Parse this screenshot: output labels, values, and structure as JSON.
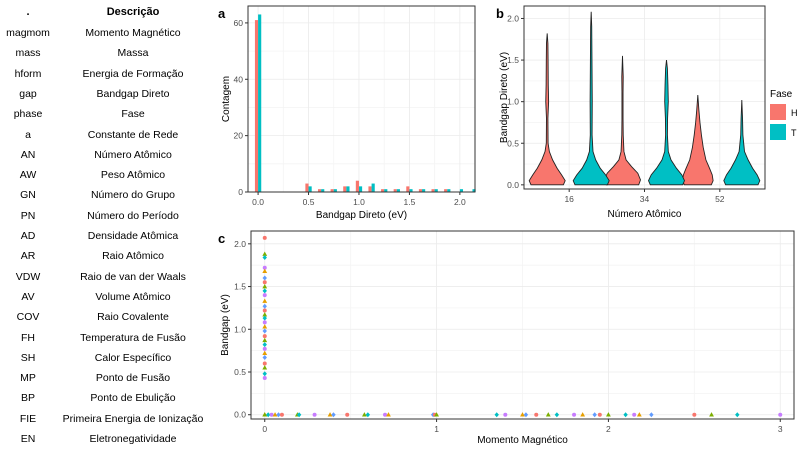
{
  "table": {
    "header_abbr": ".",
    "header_desc": "Descrição",
    "rows": [
      {
        "abbr": "magmom",
        "desc": "Momento Magnético"
      },
      {
        "abbr": "mass",
        "desc": "Massa"
      },
      {
        "abbr": "hform",
        "desc": "Energia de Formação"
      },
      {
        "abbr": "gap",
        "desc": "Bandgap Direto"
      },
      {
        "abbr": "phase",
        "desc": "Fase"
      },
      {
        "abbr": "a",
        "desc": "Constante de Rede"
      },
      {
        "abbr": "AN",
        "desc": "Número Atômico"
      },
      {
        "abbr": "AW",
        "desc": "Peso Atômico"
      },
      {
        "abbr": "GN",
        "desc": "Número do Grupo"
      },
      {
        "abbr": "PN",
        "desc": "Número do Período"
      },
      {
        "abbr": "AD",
        "desc": "Densidade Atômica"
      },
      {
        "abbr": "AR",
        "desc": "Raio Atômico"
      },
      {
        "abbr": "VDW",
        "desc": "Raio de van der Waals"
      },
      {
        "abbr": "AV",
        "desc": "Volume Atômico"
      },
      {
        "abbr": "COV",
        "desc": "Raio Covalente"
      },
      {
        "abbr": "FH",
        "desc": "Temperatura de Fusão"
      },
      {
        "abbr": "SH",
        "desc": "Calor Específico"
      },
      {
        "abbr": "MP",
        "desc": "Ponto de Fusão"
      },
      {
        "abbr": "BP",
        "desc": "Ponto de Ebulição"
      },
      {
        "abbr": "FIE",
        "desc": "Primeira Energia de Ionização"
      },
      {
        "abbr": "EN",
        "desc": "Eletronegatividade"
      }
    ]
  },
  "colors": {
    "H": "#F8766D",
    "T": "#00BFC4",
    "scatter": [
      "#F8766D",
      "#7CAE00",
      "#00BFC4",
      "#C77CFF",
      "#E69F00",
      "#619CFF"
    ]
  },
  "chart_data": [
    {
      "panel": "a",
      "type": "bar",
      "xlabel": "Bandgap Direto (eV)",
      "ylabel": "Contagem",
      "xlim": [
        -0.1,
        2.15
      ],
      "ylim": [
        0,
        66
      ],
      "xticks": [
        0.0,
        0.5,
        1.0,
        1.5,
        2.0
      ],
      "xtick_labels": [
        "0.0",
        "0.5",
        "1.0",
        "1.5",
        "2.0"
      ],
      "yticks": [
        0,
        20,
        40,
        60
      ],
      "bin_width": 0.0625,
      "series": [
        {
          "name": "H",
          "bins": [
            0.0,
            0.5,
            0.625,
            0.75,
            0.875,
            1.0,
            1.125,
            1.25,
            1.375,
            1.5,
            1.625,
            1.75,
            1.875,
            2.0,
            2.125
          ],
          "values": [
            61,
            3,
            1,
            1,
            2,
            4,
            2,
            1,
            1,
            2,
            1,
            1,
            1,
            0,
            0
          ]
        },
        {
          "name": "T",
          "bins": [
            0.0,
            0.5,
            0.625,
            0.75,
            0.875,
            1.0,
            1.125,
            1.25,
            1.375,
            1.5,
            1.625,
            1.75,
            1.875,
            2.0,
            2.125
          ],
          "values": [
            63,
            2,
            1,
            1,
            2,
            2,
            3,
            1,
            1,
            1,
            1,
            1,
            1,
            1,
            1
          ]
        }
      ]
    },
    {
      "panel": "b",
      "type": "violin",
      "xlabel": "Número Atômico",
      "ylabel": "Bandgap Direto (eV)",
      "ylim": [
        -0.05,
        2.15
      ],
      "yticks": [
        0.0,
        0.5,
        1.0,
        1.5,
        2.0
      ],
      "yticks_labels": [
        "0.0",
        "0.5",
        "1.0",
        "1.5",
        "2.0"
      ],
      "categories": [
        "16",
        "34",
        "52"
      ],
      "legend_title": "Fase",
      "legend_position": "right",
      "series": [
        {
          "name": "H",
          "violins": [
            {
              "category": "16",
              "max": 1.82,
              "profile": [
                [
                  0.0,
                  0.9
                ],
                [
                  0.05,
                  1.0
                ],
                [
                  0.12,
                  0.8
                ],
                [
                  0.2,
                  0.55
                ],
                [
                  0.3,
                  0.3
                ],
                [
                  0.4,
                  0.12
                ],
                [
                  0.5,
                  0.05
                ],
                [
                  0.8,
                  0.04
                ],
                [
                  1.0,
                  0.08
                ],
                [
                  1.2,
                  0.06
                ],
                [
                  1.5,
                  0.05
                ],
                [
                  1.7,
                  0.04
                ],
                [
                  1.82,
                  0.0
                ]
              ]
            },
            {
              "category": "34",
              "max": 1.55,
              "profile": [
                [
                  0.0,
                  0.9
                ],
                [
                  0.06,
                  1.0
                ],
                [
                  0.14,
                  0.85
                ],
                [
                  0.22,
                  0.5
                ],
                [
                  0.3,
                  0.2
                ],
                [
                  0.4,
                  0.08
                ],
                [
                  0.6,
                  0.04
                ],
                [
                  0.8,
                  0.03
                ],
                [
                  1.1,
                  0.03
                ],
                [
                  1.3,
                  0.04
                ],
                [
                  1.55,
                  0.0
                ]
              ]
            },
            {
              "category": "52",
              "max": 1.08,
              "profile": [
                [
                  0.0,
                  0.75
                ],
                [
                  0.05,
                  0.85
                ],
                [
                  0.12,
                  0.8
                ],
                [
                  0.2,
                  0.65
                ],
                [
                  0.3,
                  0.45
                ],
                [
                  0.45,
                  0.3
                ],
                [
                  0.6,
                  0.2
                ],
                [
                  0.75,
                  0.12
                ],
                [
                  0.9,
                  0.06
                ],
                [
                  1.08,
                  0.0
                ]
              ]
            }
          ]
        },
        {
          "name": "T",
          "violins": [
            {
              "category": "16",
              "max": 2.08,
              "profile": [
                [
                  0.0,
                  0.9
                ],
                [
                  0.05,
                  1.0
                ],
                [
                  0.12,
                  0.8
                ],
                [
                  0.2,
                  0.5
                ],
                [
                  0.3,
                  0.25
                ],
                [
                  0.4,
                  0.1
                ],
                [
                  0.6,
                  0.05
                ],
                [
                  1.0,
                  0.06
                ],
                [
                  1.3,
                  0.05
                ],
                [
                  1.6,
                  0.04
                ],
                [
                  1.9,
                  0.03
                ],
                [
                  2.08,
                  0.0
                ]
              ]
            },
            {
              "category": "34",
              "max": 1.5,
              "profile": [
                [
                  0.0,
                  0.9
                ],
                [
                  0.05,
                  1.0
                ],
                [
                  0.12,
                  0.85
                ],
                [
                  0.2,
                  0.55
                ],
                [
                  0.3,
                  0.25
                ],
                [
                  0.4,
                  0.1
                ],
                [
                  0.6,
                  0.05
                ],
                [
                  0.8,
                  0.06
                ],
                [
                  1.0,
                  0.1
                ],
                [
                  1.2,
                  0.08
                ],
                [
                  1.4,
                  0.05
                ],
                [
                  1.5,
                  0.0
                ]
              ]
            },
            {
              "category": "52",
              "max": 1.02,
              "profile": [
                [
                  0.0,
                  0.9
                ],
                [
                  0.05,
                  1.0
                ],
                [
                  0.12,
                  0.85
                ],
                [
                  0.2,
                  0.6
                ],
                [
                  0.3,
                  0.35
                ],
                [
                  0.4,
                  0.15
                ],
                [
                  0.6,
                  0.06
                ],
                [
                  0.8,
                  0.04
                ],
                [
                  1.02,
                  0.0
                ]
              ]
            }
          ]
        }
      ]
    },
    {
      "panel": "c",
      "type": "scatter",
      "xlabel": "Momento Magnético",
      "ylabel": "Bandgap (eV)",
      "xlim": [
        -0.08,
        3.08
      ],
      "ylim": [
        -0.05,
        2.15
      ],
      "xticks": [
        0,
        1,
        2,
        3
      ],
      "xtick_labels": [
        "0",
        "1",
        "2",
        "3"
      ],
      "yticks": [
        0.0,
        0.5,
        1.0,
        1.5,
        2.0
      ],
      "ytick_labels": [
        "0.0",
        "0.5",
        "1.0",
        "1.5",
        "2.0"
      ],
      "points_at_zero_moment": [
        2.07,
        1.88,
        1.84,
        1.72,
        1.68,
        1.6,
        1.55,
        1.5,
        1.45,
        1.4,
        1.33,
        1.27,
        1.22,
        1.17,
        1.13,
        1.08,
        1.03,
        0.98,
        0.92,
        0.87,
        0.82,
        0.77,
        0.72,
        0.67,
        0.6,
        0.55,
        0.48,
        0.43,
        0.0
      ],
      "points_at_zero_gap": [
        0.0,
        0.02,
        0.04,
        0.06,
        0.08,
        0.1,
        0.19,
        0.2,
        0.29,
        0.38,
        0.4,
        0.48,
        0.58,
        0.6,
        0.7,
        0.72,
        0.98,
        0.99,
        1.0,
        1.35,
        1.4,
        1.5,
        1.52,
        1.58,
        1.65,
        1.7,
        1.8,
        1.85,
        1.92,
        1.95,
        2.0,
        2.1,
        2.15,
        2.18,
        2.25,
        2.5,
        2.6,
        2.75,
        3.0
      ]
    }
  ],
  "panel_labels": [
    "a",
    "b",
    "c"
  ]
}
